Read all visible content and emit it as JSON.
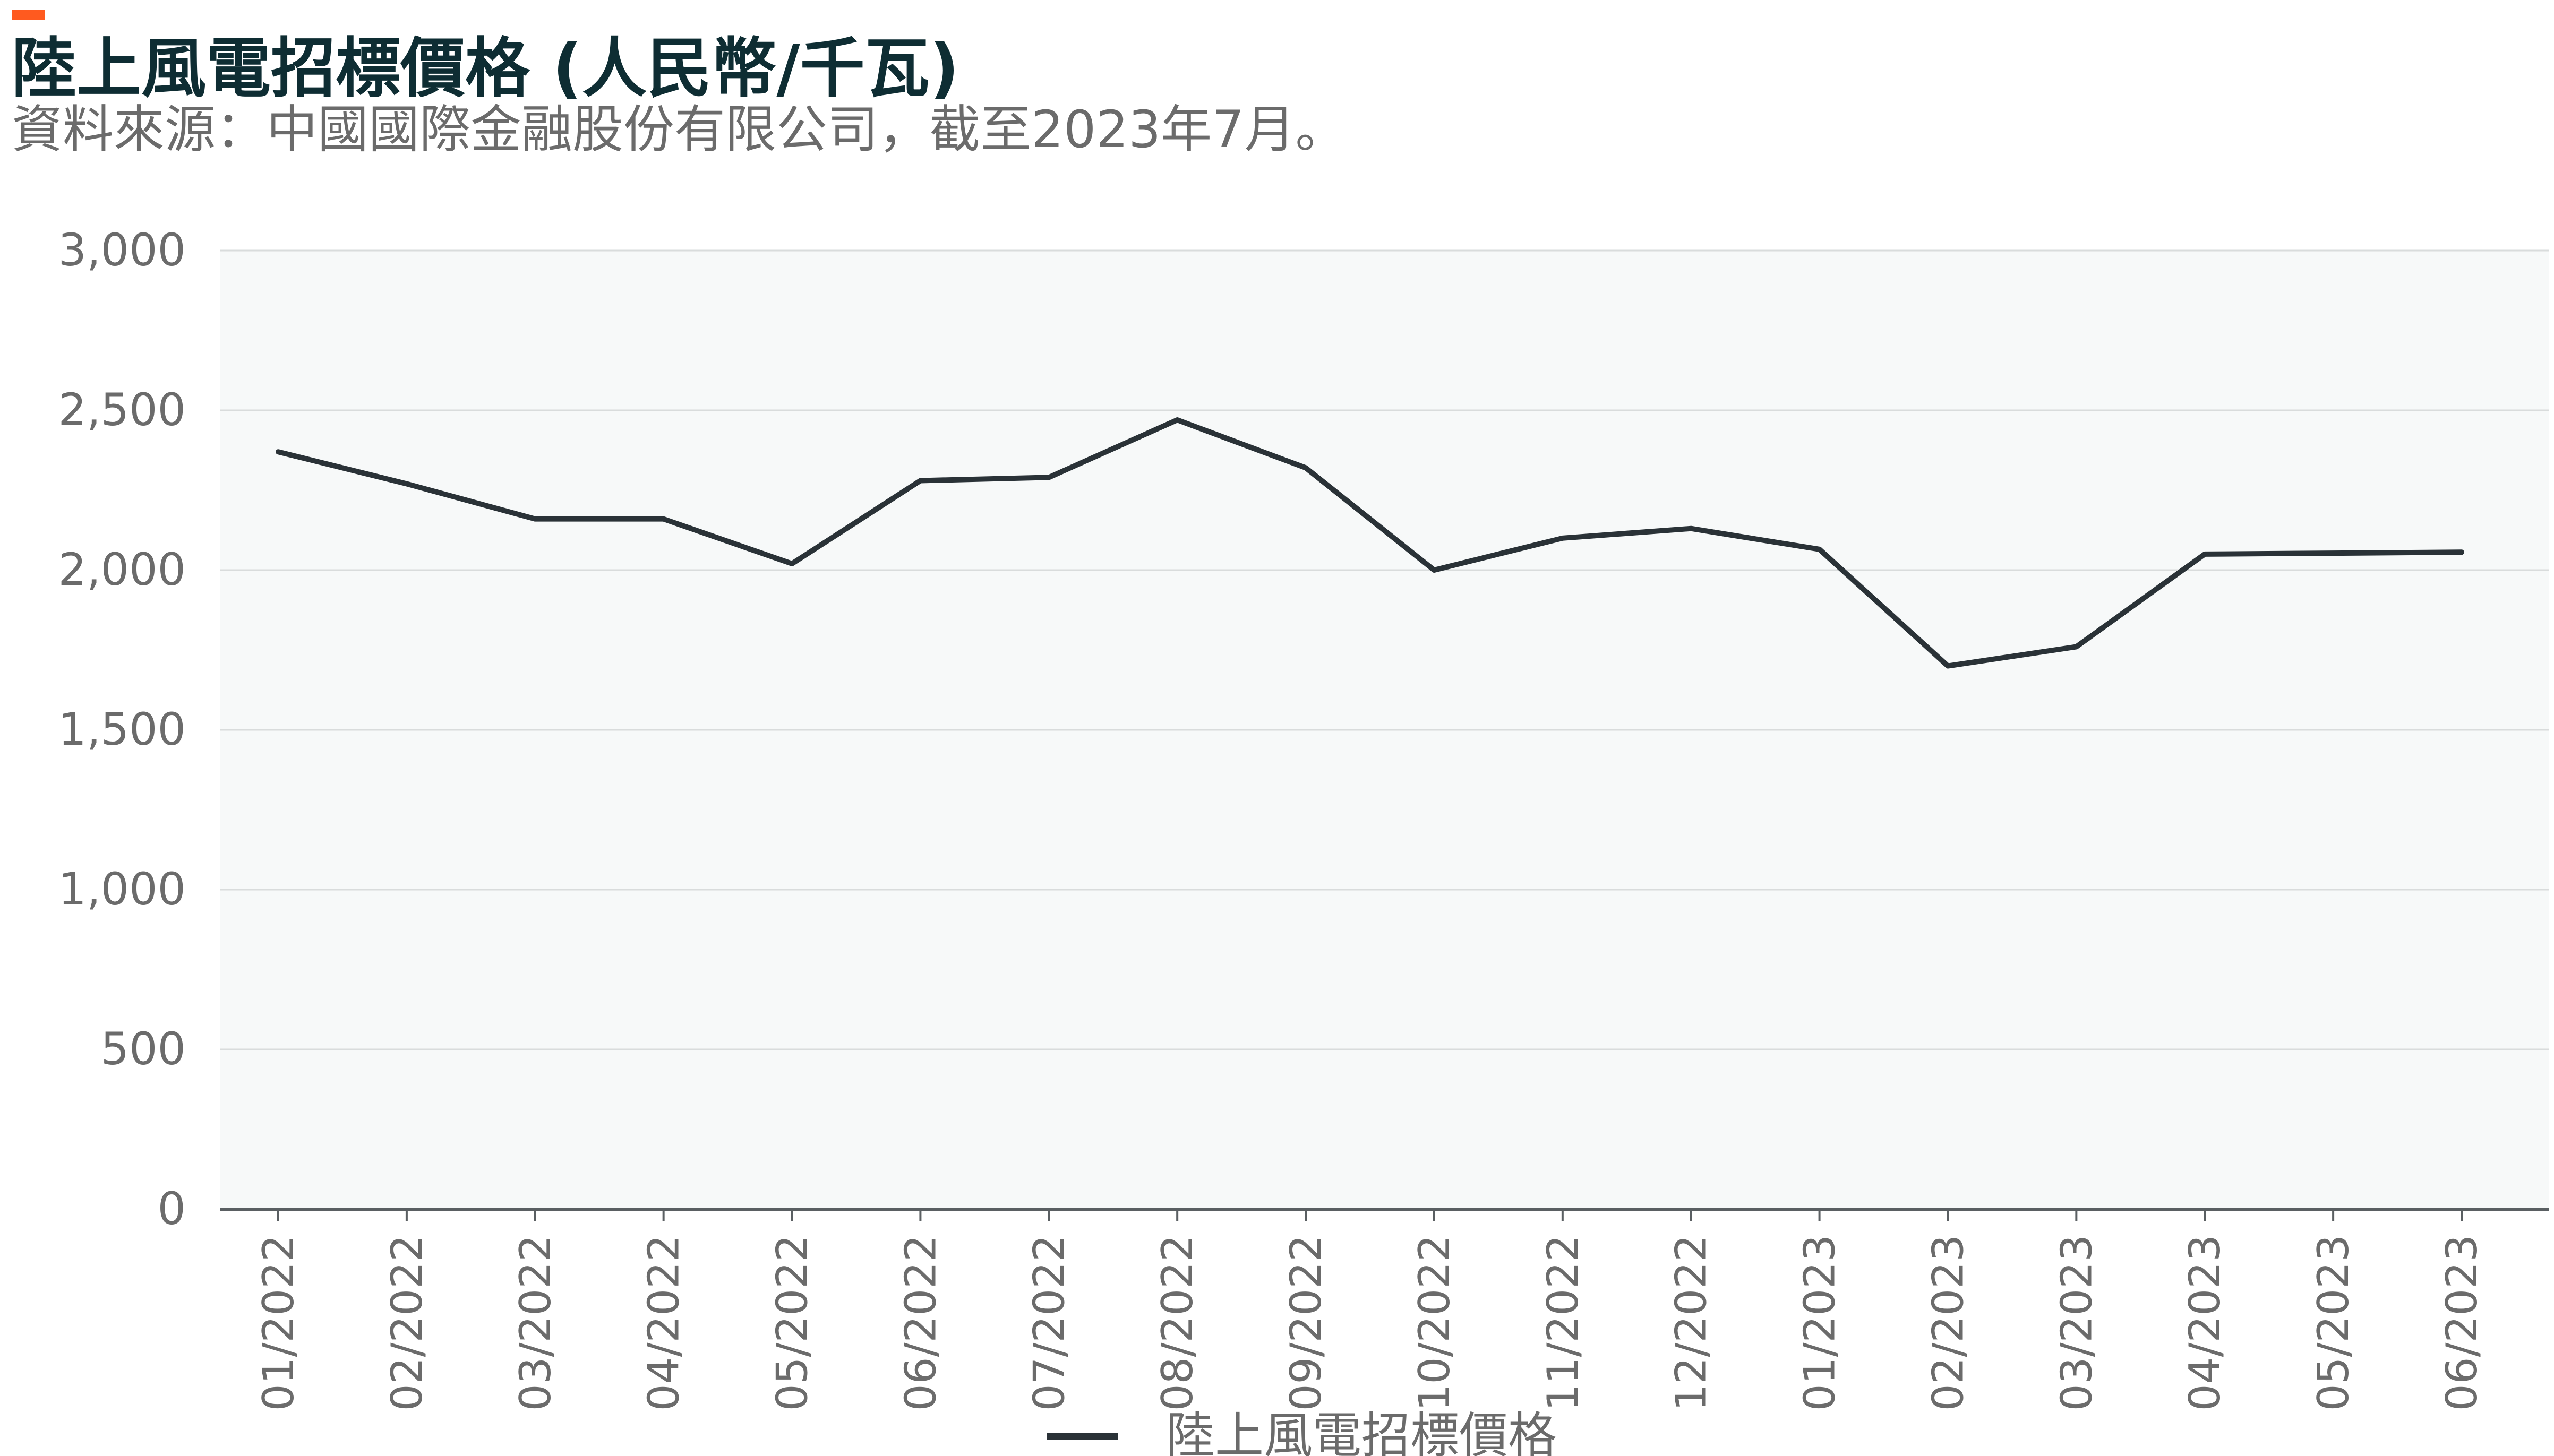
{
  "header": {
    "title": "陸上風電招標價格 (人民幣/千瓦)",
    "subtitle": "資料來源：中國國際金融股份有限公司，截至2023年7月。"
  },
  "colors": {
    "accent": "#ff5a1f",
    "line": "#2a3237",
    "plot_bg": "#f7f9f9",
    "grid": "#d9dcdc",
    "axis": "#5a5f62",
    "text": "#6b6b6b",
    "title": "#0e2d33"
  },
  "chart_data": {
    "type": "line",
    "title": "陸上風電招標價格 (人民幣/千瓦)",
    "categories": [
      "01/2022",
      "02/2022",
      "03/2022",
      "04/2022",
      "05/2022",
      "06/2022",
      "07/2022",
      "08/2022",
      "09/2022",
      "10/2022",
      "11/2022",
      "12/2022",
      "01/2023",
      "02/2023",
      "03/2023",
      "04/2023",
      "05/2023",
      "06/2023"
    ],
    "series": [
      {
        "name": "陸上風電招標價格",
        "values": [
          2370,
          2270,
          2160,
          2160,
          2020,
          2280,
          2290,
          2470,
          2320,
          2000,
          2100,
          2130,
          2065,
          1700,
          1760,
          2050,
          2053,
          2056
        ]
      }
    ],
    "y_ticks": [
      "3,000",
      "2,500",
      "2,000",
      "1,500",
      "1,000",
      "500",
      "0"
    ],
    "y_tick_values": [
      3000,
      2500,
      2000,
      1500,
      1000,
      500,
      0
    ],
    "ylim": [
      0,
      3000
    ],
    "grid": true,
    "legend": {
      "position": "bottom-center",
      "label": "陸上風電招標價格"
    },
    "xlabel": "",
    "ylabel": ""
  }
}
